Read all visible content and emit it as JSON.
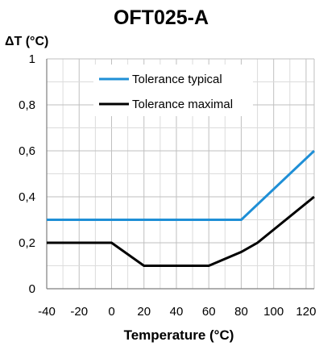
{
  "chart_data": {
    "type": "line",
    "title": "OFT025-A",
    "ylabel": "ΔT (°C)",
    "xlabel": "Temperature (°C)",
    "xlim": [
      -40,
      125
    ],
    "ylim": [
      0,
      1
    ],
    "xticks": [
      -40,
      -20,
      0,
      20,
      40,
      60,
      80,
      100,
      120
    ],
    "xtick_labels": [
      "-40",
      "-20",
      "0",
      "20",
      "40",
      "60",
      "80",
      "100",
      "120"
    ],
    "yticks": [
      0,
      0.2,
      0.4,
      0.6,
      0.8,
      1
    ],
    "ytick_labels": [
      "0",
      "0,2",
      "0,4",
      "0,6",
      "0,8",
      "1"
    ],
    "grid": true,
    "legend_position": "top-center",
    "series": [
      {
        "name": "Tolerance typical",
        "color": "#1f8fd6",
        "x": [
          -40,
          80,
          125
        ],
        "y": [
          0.3,
          0.3,
          0.6
        ]
      },
      {
        "name": "Tolerance maximal",
        "color": "#000000",
        "x": [
          -40,
          0,
          20,
          60,
          80,
          90,
          125
        ],
        "y": [
          0.2,
          0.2,
          0.1,
          0.1,
          0.16,
          0.2,
          0.4
        ]
      }
    ]
  }
}
